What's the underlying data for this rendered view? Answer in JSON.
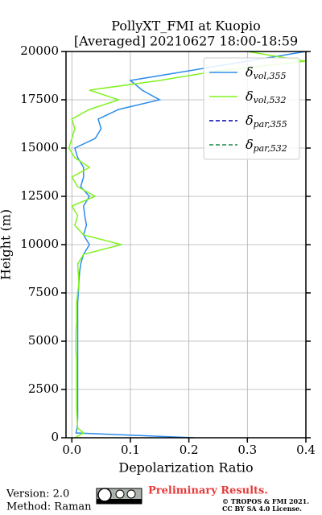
{
  "chart_data": {
    "type": "line",
    "title": "PollyXT_FMI at Kuopio",
    "subtitle": "[Averaged] 20210627 18:00-18:59",
    "x_label": "Depolarization Ratio",
    "y_label": "Height (m)",
    "heights": [
      0,
      250,
      500,
      1000,
      1500,
      2000,
      2500,
      3000,
      3500,
      4000,
      4500,
      5000,
      5500,
      6000,
      6500,
      7000,
      7500,
      8000,
      8500,
      9000,
      9500,
      10000,
      10500,
      11000,
      11500,
      12000,
      12500,
      13000,
      13500,
      14000,
      14500,
      15000,
      15500,
      16000,
      16500,
      17000,
      17500,
      18000,
      18500,
      19000,
      19500,
      20000
    ],
    "series": [
      {
        "name": "δ",
        "subscript": "vol,355",
        "color": "#2b8cee",
        "dash": false,
        "values": [
          0.21,
          0.007,
          0.009,
          0.01,
          0.01,
          0.01,
          0.01,
          0.01,
          0.01,
          0.01,
          0.01,
          0.01,
          0.01,
          0.01,
          0.01,
          0.01,
          0.011,
          0.012,
          0.013,
          0.015,
          0.02,
          0.03,
          0.02,
          0.025,
          0.022,
          0.02,
          0.03,
          0.015,
          0.02,
          0.02,
          0.01,
          0.005,
          0.04,
          0.05,
          0.045,
          0.08,
          0.15,
          0.12,
          0.1,
          0.2,
          0.3,
          0.4
        ]
      },
      {
        "name": "δ",
        "subscript": "vol,532",
        "color": "#80f31f",
        "dash": false,
        "values": [
          0.005,
          0.02,
          0.01,
          0.009,
          0.008,
          0.008,
          0.008,
          0.008,
          0.008,
          0.008,
          0.007,
          0.007,
          0.007,
          0.008,
          0.008,
          0.008,
          0.01,
          0.012,
          0.011,
          0.01,
          0.02,
          0.085,
          0.02,
          0.005,
          0.01,
          0.0,
          0.04,
          0.01,
          0.0,
          0.03,
          0.005,
          -0.005,
          0.0,
          0.005,
          0.0,
          0.03,
          0.08,
          0.03,
          0.15,
          0.25,
          0.4,
          0.3
        ]
      },
      {
        "name": "δ",
        "subscript": "par,355",
        "color": "#0000b0",
        "dash": true,
        "values": [
          null,
          null,
          null,
          null,
          null,
          null,
          null,
          null,
          null,
          null,
          null,
          null,
          null,
          null,
          null,
          null,
          null,
          null,
          null,
          null,
          null,
          null,
          null,
          null,
          null,
          null,
          null,
          null,
          null,
          null,
          null,
          null,
          null,
          null,
          null,
          null,
          null,
          null,
          null,
          null,
          null,
          null
        ]
      },
      {
        "name": "δ",
        "subscript": "par,532",
        "color": "#1a8a4a",
        "dash": true,
        "values": [
          null,
          null,
          null,
          null,
          null,
          null,
          null,
          null,
          null,
          null,
          null,
          null,
          null,
          null,
          null,
          null,
          null,
          null,
          null,
          null,
          null,
          null,
          null,
          null,
          null,
          null,
          null,
          null,
          null,
          null,
          null,
          null,
          null,
          null,
          null,
          null,
          null,
          null,
          null,
          null,
          null,
          null
        ]
      }
    ],
    "xlim": [
      -0.01,
      0.4
    ],
    "xticks": [
      {
        "value": 0,
        "label": "0.0"
      },
      0.1,
      0.2,
      0.3,
      0.4
    ],
    "ylim": [
      0,
      20000
    ],
    "yticks": [
      0,
      2500,
      5000,
      7500,
      10000,
      12500,
      15000,
      17500,
      20000
    ],
    "grid": true,
    "legend": "upper right"
  },
  "footer": {
    "version": "Version: 2.0",
    "method": "Method: Raman",
    "notice": "Preliminary Results.",
    "copyright": "© TROPOS & FMI 2021.",
    "license": "CC BY SA 4.0 License."
  }
}
